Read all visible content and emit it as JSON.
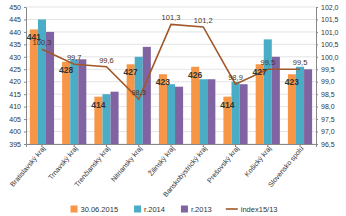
{
  "chart_data": {
    "type": "bar",
    "categories": [
      "Bratislavský kraj",
      "Trnavský kraj",
      "Trenčiansky kraj",
      "Nitriansky kraj",
      "Žilinský kraj",
      "Banskobystrický kraj",
      "Prešovský kraj",
      "Košický kraj",
      "Slovensko spolu"
    ],
    "series": [
      {
        "name": "30.06.2015",
        "color": "#f79646",
        "values": [
          441,
          428,
          414,
          427,
          423,
          426,
          414,
          427,
          423
        ],
        "value_labels": [
          "441",
          "428",
          "414",
          "427",
          "423",
          "426",
          "414",
          "427",
          "423"
        ]
      },
      {
        "name": "r.2014",
        "color": "#4bacc6",
        "values": [
          445,
          429,
          415,
          430,
          419,
          421,
          420,
          437,
          426
        ]
      },
      {
        "name": "r.2013",
        "color": "#8064a2",
        "values": [
          440,
          429,
          416,
          434,
          418,
          421,
          419,
          430,
          425
        ]
      },
      {
        "name": "index15/13",
        "color": "#a0582a",
        "type": "line",
        "axis": "y2",
        "values": [
          100.3,
          99.7,
          99.6,
          98.3,
          101.3,
          101.2,
          98.9,
          99.5,
          99.5
        ],
        "value_labels": [
          "100,3",
          "99,7",
          "99,6",
          "98,3",
          "101,3",
          "101,2",
          "98,9",
          "99,5",
          "99,5"
        ]
      }
    ],
    "ylim": [
      395,
      450
    ],
    "yticks": [
      395,
      400,
      405,
      410,
      415,
      420,
      425,
      430,
      435,
      440,
      445,
      450
    ],
    "y2lim": [
      96.5,
      102.0
    ],
    "y2ticks": [
      {
        "value": 96.5,
        "label": "96,5"
      },
      {
        "value": 97.0,
        "label": "97,0"
      },
      {
        "value": 97.5,
        "label": "97,5"
      },
      {
        "value": 98.0,
        "label": "98,0"
      },
      {
        "value": 98.5,
        "label": "98,5"
      },
      {
        "value": 99.0,
        "label": "99,0"
      },
      {
        "value": 99.5,
        "label": "99,5"
      },
      {
        "value": 100.0,
        "label": "100,0"
      },
      {
        "value": 100.5,
        "label": "100,5"
      },
      {
        "value": 101.0,
        "label": "101,0"
      },
      {
        "value": 101.5,
        "label": "101,5"
      },
      {
        "value": 102.0,
        "label": "102,0"
      }
    ],
    "grid": true,
    "data_labels": true,
    "legend": "bottom"
  }
}
